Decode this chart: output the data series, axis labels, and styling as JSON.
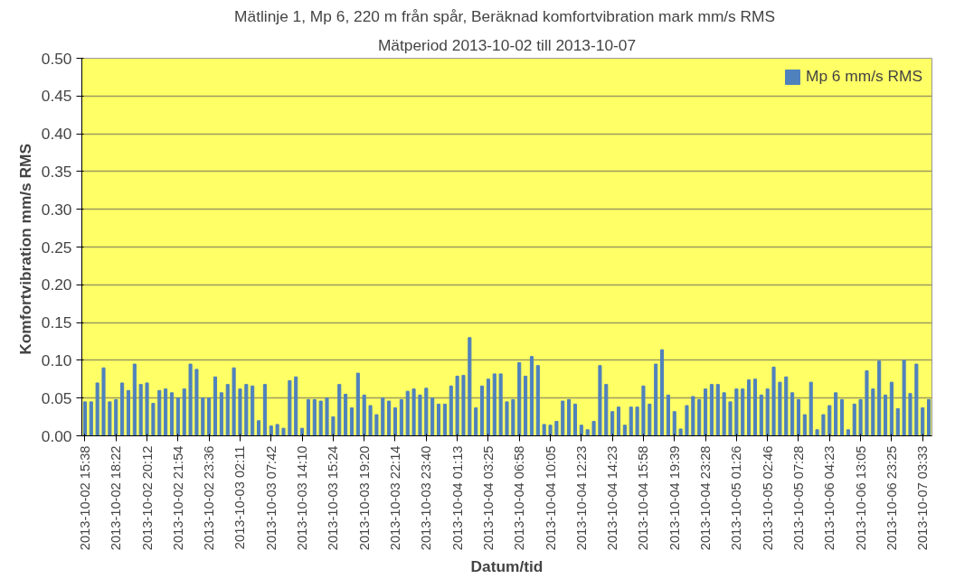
{
  "chart_data": {
    "type": "bar",
    "title": "Mätlinje 1, Mp 6, 220 m från spår, Beräknad komfortvibration mark mm/s  RMS",
    "subtitle": "Mätperiod 2013-10-02 till 2013-10-07",
    "xlabel": "Datum/tid",
    "ylabel": "Komfortvibration  mm/s RMS",
    "categories": [
      "2013-10-02 15:38",
      null,
      null,
      null,
      null,
      "2013-10-02 18:22",
      null,
      null,
      null,
      null,
      "2013-10-02 20:12",
      null,
      null,
      null,
      null,
      "2013-10-02 21:54",
      null,
      null,
      null,
      null,
      "2013-10-02 23:36",
      null,
      null,
      null,
      null,
      "2013-10-03 02:11",
      null,
      null,
      null,
      null,
      "2013-10-03 07:42",
      null,
      null,
      null,
      null,
      "2013-10-03 14:10",
      null,
      null,
      null,
      null,
      "2013-10-03 15:24",
      null,
      null,
      null,
      null,
      "2013-10-03 19:20",
      null,
      null,
      null,
      null,
      "2013-10-03 22:14",
      null,
      null,
      null,
      null,
      "2013-10-03 23:40",
      null,
      null,
      null,
      null,
      "2013-10-04 01:13",
      null,
      null,
      null,
      null,
      "2013-10-04 03:25",
      null,
      null,
      null,
      null,
      "2013-10-04 06:58",
      null,
      null,
      null,
      null,
      "2013-10-04 10:05",
      null,
      null,
      null,
      null,
      "2013-10-04 12:23",
      null,
      null,
      null,
      null,
      "2013-10-04 14:23",
      null,
      null,
      null,
      null,
      "2013-10-04 15:58",
      null,
      null,
      null,
      null,
      "2013-10-04 19:39",
      null,
      null,
      null,
      null,
      "2013-10-04 23:28",
      null,
      null,
      null,
      null,
      "2013-10-05 01:26",
      null,
      null,
      null,
      null,
      "2013-10-05 02:46",
      null,
      null,
      null,
      null,
      "2013-10-05 07:28",
      null,
      null,
      null,
      null,
      "2013-10-06 04:23",
      null,
      null,
      null,
      null,
      "2013-10-06 13:05",
      null,
      null,
      null,
      null,
      "2013-10-06 23:25",
      null,
      null,
      null,
      null,
      "2013-10-07 03:33",
      null
    ],
    "series": [
      {
        "name": "Mp 6 mm/s RMS",
        "color": "#4f81bd",
        "values": [
          0.045,
          0.045,
          0.07,
          0.09,
          0.045,
          0.048,
          0.07,
          0.06,
          0.095,
          0.068,
          0.07,
          0.043,
          0.06,
          0.062,
          0.057,
          0.05,
          0.062,
          0.095,
          0.088,
          0.05,
          0.05,
          0.078,
          0.057,
          0.068,
          0.09,
          0.062,
          0.068,
          0.066,
          0.02,
          0.068,
          0.013,
          0.015,
          0.01,
          0.073,
          0.078,
          0.01,
          0.048,
          0.048,
          0.046,
          0.05,
          0.025,
          0.068,
          0.055,
          0.037,
          0.083,
          0.054,
          0.04,
          0.028,
          0.05,
          0.046,
          0.037,
          0.048,
          0.059,
          0.062,
          0.054,
          0.063,
          0.05,
          0.042,
          0.042,
          0.066,
          0.079,
          0.08,
          0.13,
          0.037,
          0.066,
          0.075,
          0.082,
          0.082,
          0.045,
          0.048,
          0.097,
          0.079,
          0.105,
          0.093,
          0.015,
          0.014,
          0.019,
          0.046,
          0.048,
          0.042,
          0.014,
          0.008,
          0.019,
          0.093,
          0.068,
          0.032,
          0.038,
          0.014,
          0.038,
          0.038,
          0.066,
          0.042,
          0.095,
          0.114,
          0.054,
          0.032,
          0.009,
          0.04,
          0.052,
          0.048,
          0.062,
          0.068,
          0.068,
          0.057,
          0.045,
          0.062,
          0.062,
          0.074,
          0.075,
          0.054,
          0.062,
          0.091,
          0.071,
          0.078,
          0.057,
          0.048,
          0.028,
          0.071,
          0.008,
          0.028,
          0.04,
          0.057,
          0.048,
          0.008,
          0.042,
          0.048,
          0.086,
          0.062,
          0.099,
          0.054,
          0.071,
          0.036,
          0.1,
          0.056,
          0.095,
          0.037,
          0.048
        ]
      }
    ],
    "ylim": [
      0,
      0.5
    ],
    "yticks": [
      {
        "value": 0,
        "label": "0.00"
      },
      {
        "value": 0.05,
        "label": "0.05"
      },
      {
        "value": 0.1,
        "label": "0.10"
      },
      {
        "value": 0.15,
        "label": "0.15"
      },
      {
        "value": 0.2,
        "label": "0.20"
      },
      {
        "value": 0.25,
        "label": "0.25"
      },
      {
        "value": 0.3,
        "label": "0.30"
      },
      {
        "value": 0.35,
        "label": "0.35"
      },
      {
        "value": 0.4,
        "label": "0.40"
      },
      {
        "value": 0.45,
        "label": "0.45"
      },
      {
        "value": 0.5,
        "label": "0.50"
      }
    ],
    "grid": "y",
    "legend": "top right"
  }
}
